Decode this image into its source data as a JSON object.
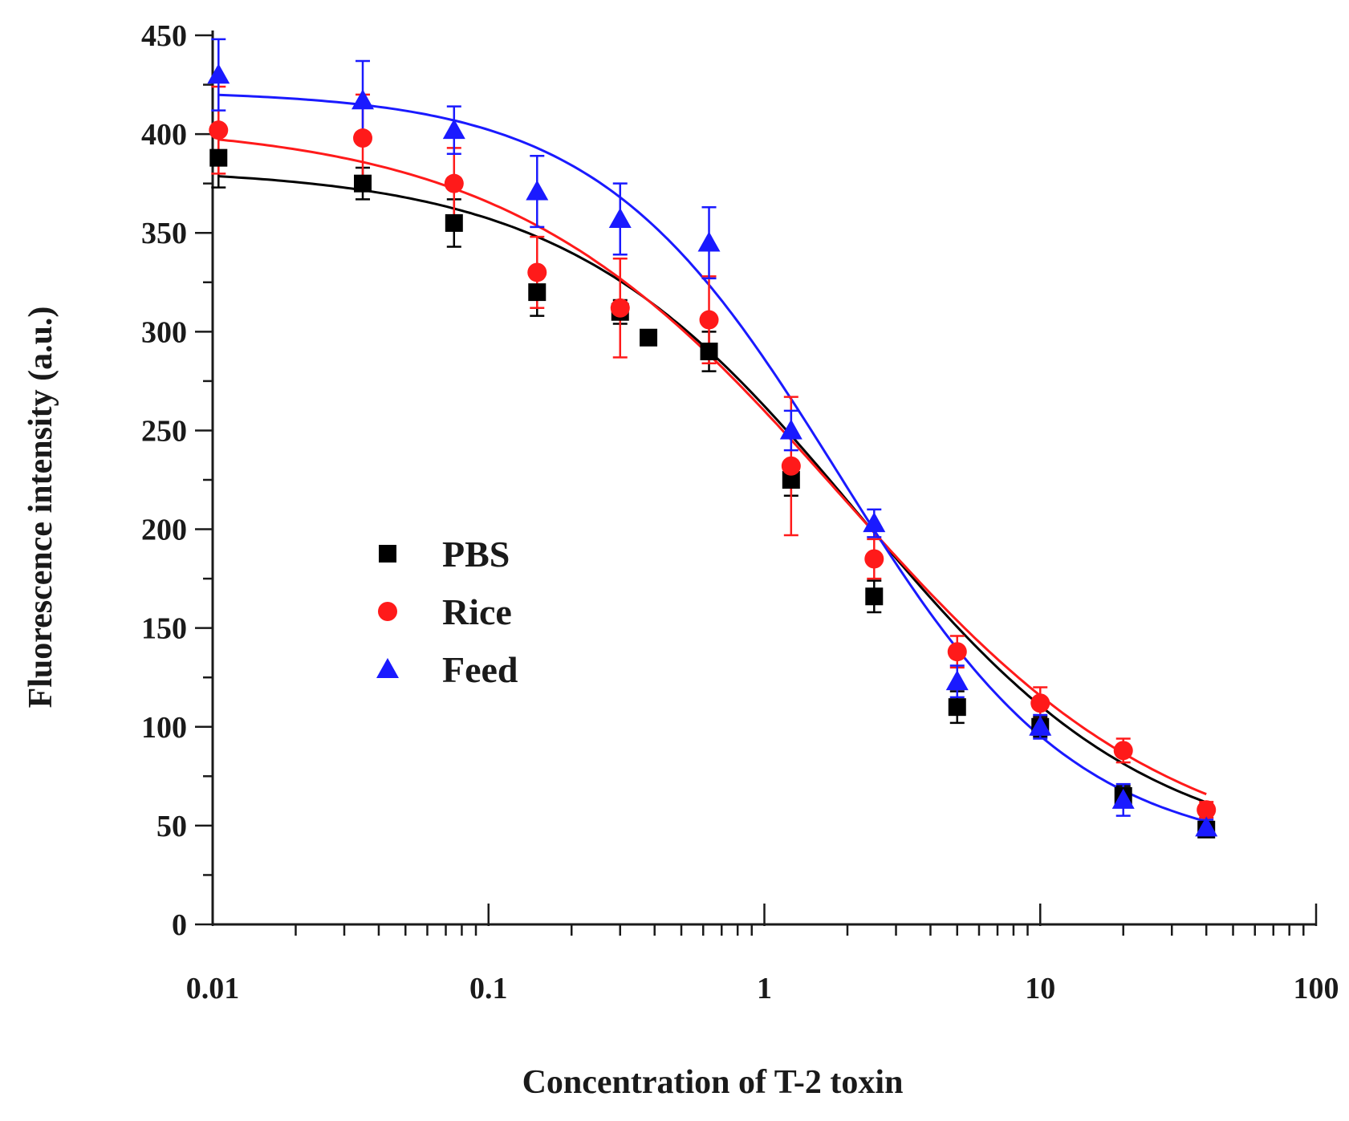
{
  "chart_data": {
    "type": "scatter",
    "title": "",
    "xlabel": "Concentration of T-2 toxin",
    "ylabel": "Fluorescence intensity (a.u.)",
    "xscale": "log",
    "xlim": [
      0.01,
      100
    ],
    "ylim": [
      0,
      450
    ],
    "x_ticks": [
      "0.01",
      "0.1",
      "1",
      "10",
      "100"
    ],
    "y_ticks": [
      "0",
      "50",
      "100",
      "150",
      "200",
      "250",
      "300",
      "350",
      "400",
      "450"
    ],
    "legend_position": "center-left",
    "series": [
      {
        "name": "PBS",
        "color": "#000000",
        "marker": "square",
        "x": [
          0.0105,
          0.035,
          0.075,
          0.15,
          0.3,
          0.38,
          0.63,
          1.25,
          2.5,
          5,
          10,
          20,
          40
        ],
        "y": [
          388,
          375,
          355,
          320,
          310,
          297,
          290,
          225,
          166,
          110,
          100,
          65,
          48
        ],
        "err": [
          15,
          8,
          12,
          12,
          6,
          3,
          10,
          8,
          8,
          8,
          5,
          5,
          3
        ],
        "fit": {
          "top": 383,
          "bottom": 32,
          "ec50": 2.2,
          "hill": 0.82
        }
      },
      {
        "name": "Rice",
        "color": "#ff1a1a",
        "marker": "circle",
        "x": [
          0.0105,
          0.035,
          0.075,
          0.15,
          0.3,
          0.63,
          1.25,
          2.5,
          5,
          10,
          20,
          40
        ],
        "y": [
          402,
          398,
          375,
          330,
          312,
          306,
          232,
          185,
          138,
          112,
          88,
          58
        ],
        "err": [
          22,
          22,
          18,
          18,
          25,
          22,
          35,
          10,
          8,
          8,
          6,
          4
        ],
        "fit": {
          "top": 406,
          "bottom": 28,
          "ec50": 1.9,
          "hill": 0.72
        }
      },
      {
        "name": "Feed",
        "color": "#1a1aff",
        "marker": "triangle",
        "x": [
          0.0105,
          0.035,
          0.075,
          0.15,
          0.3,
          0.63,
          1.25,
          2.5,
          5,
          10,
          20,
          40
        ],
        "y": [
          430,
          417,
          402,
          371,
          357,
          345,
          250,
          203,
          123,
          100,
          63,
          49
        ],
        "err": [
          18,
          20,
          12,
          18,
          18,
          18,
          10,
          7,
          8,
          6,
          8,
          4
        ],
        "fit": {
          "top": 422,
          "bottom": 35,
          "ec50": 1.85,
          "hill": 1.0
        }
      }
    ]
  }
}
